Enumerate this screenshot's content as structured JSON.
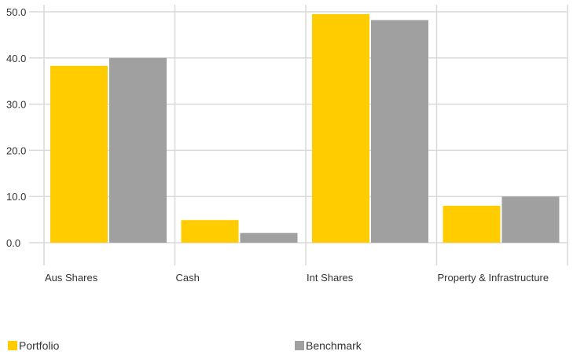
{
  "chart_data": {
    "type": "bar",
    "categories": [
      "Aus Shares",
      "Cash",
      "Int Shares",
      "Property & Infrastructure"
    ],
    "series": [
      {
        "name": "Portfolio",
        "values": [
          38.3,
          4.9,
          49.5,
          8.0
        ],
        "color": "#FFCC00"
      },
      {
        "name": "Benchmark",
        "values": [
          40.0,
          2.1,
          48.2,
          10.0
        ],
        "color": "#A0A0A0"
      }
    ],
    "y_ticks": [
      "0.0",
      "10.0",
      "20.0",
      "30.0",
      "40.0",
      "50.0"
    ],
    "ylim": [
      0,
      50
    ],
    "grid": true,
    "legend_position": "bottom"
  }
}
